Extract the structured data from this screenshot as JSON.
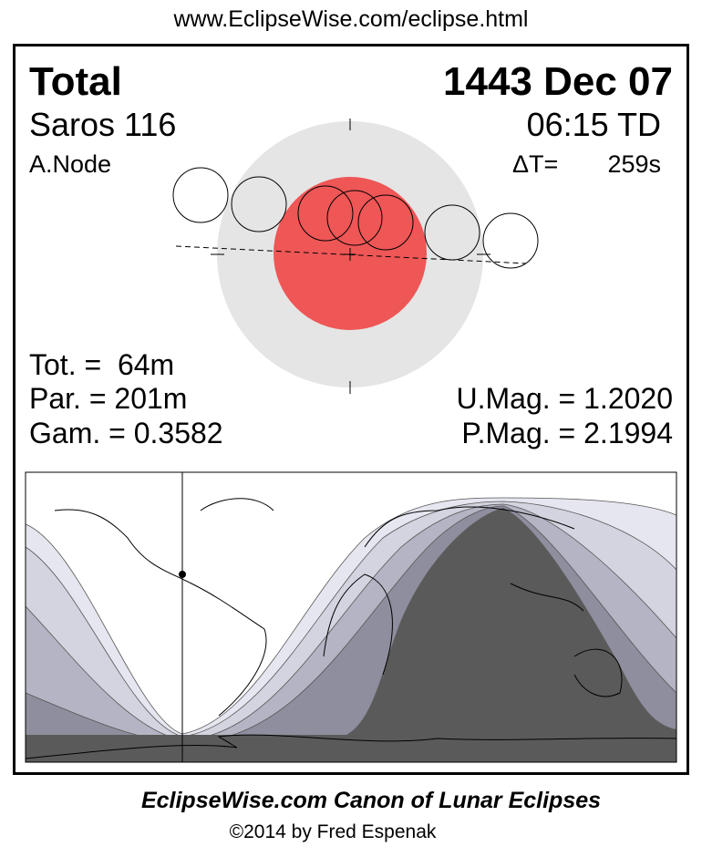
{
  "header": {
    "url": "www.EclipseWise.com/eclipse.html"
  },
  "eclipse": {
    "type": "Total",
    "date": "1443 Dec 07",
    "saros": "Saros 116",
    "time": "06:15 TD",
    "node": "A.Node",
    "delta_t_label": "ΔT=",
    "delta_t_value": "259s",
    "totality": "Tot. =  64m",
    "partial": "Par. = 201m",
    "gamma": "Gam. = 0.3582",
    "umbral_mag": "U.Mag. = 1.2020",
    "penumbral_mag": "P.Mag. = 2.1994"
  },
  "colors": {
    "umbra": "#ef5656",
    "penumbra": "#e5e5e5",
    "map_bands": [
      "#e6e6f0",
      "#d4d4e0",
      "#b4b4c4",
      "#8e8e9e",
      "#5a5a5a"
    ]
  },
  "footer": {
    "title": "EclipseWise.com Canon of Lunar Eclipses",
    "copyright": "©2014 by Fred Espenak"
  }
}
